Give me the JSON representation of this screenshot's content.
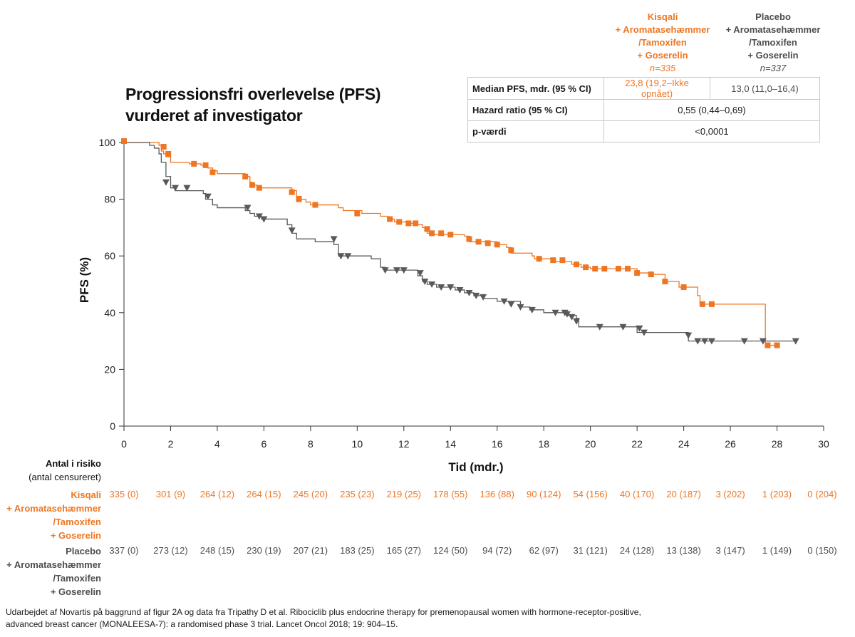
{
  "title_lines": [
    "Progressionsfri overlevelse (PFS)",
    "vurderet af investigator"
  ],
  "colors": {
    "kisqali": "#ee7623",
    "placebo": "#595959",
    "axis": "#333333"
  },
  "arms": {
    "kisqali": {
      "lines": [
        "Kisqali",
        "+ Aromatasehæmmer",
        "/Tamoxifen",
        "+ Goserelin"
      ],
      "n": "n=335"
    },
    "placebo": {
      "lines": [
        "Placebo",
        "+ Aromatasehæmmer",
        "/Tamoxifen",
        "+ Goserelin"
      ],
      "n": "n=337"
    }
  },
  "stats_table": [
    {
      "label": "Median PFS, mdr. (95 % CI)",
      "kisqali": "23,8 (19,2–Ikke opnået)",
      "placebo": "13,0 (11,0–16,4)"
    },
    {
      "label": "Hazard ratio (95 % CI)",
      "shared": "0,55 (0,44–0,69)"
    },
    {
      "label": "p-værdi",
      "shared": "<0,0001"
    }
  ],
  "risk": {
    "heading": "Antal i risiko",
    "subheading": "(antal censureret)",
    "kisqali_label_lines": [
      "Kisqali",
      "+ Aromatasehæmmer",
      "/Tamoxifen",
      "+ Goserelin"
    ],
    "placebo_label_lines": [
      "Placebo",
      "+ Aromatasehæmmer",
      "/Tamoxifen",
      "+ Goserelin"
    ],
    "times": [
      0,
      2,
      4,
      6,
      8,
      10,
      12,
      14,
      16,
      18,
      20,
      22,
      24,
      26,
      28,
      30
    ],
    "kisqali": [
      "335 (0)",
      "301 (9)",
      "264 (12)",
      "264 (15)",
      "245 (20)",
      "235 (23)",
      "219 (25)",
      "178 (55)",
      "136 (88)",
      "90 (124)",
      "54 (156)",
      "40 (170)",
      "20 (187)",
      "3 (202)",
      "1 (203)",
      "0 (204)"
    ],
    "placebo": [
      "337 (0)",
      "273 (12)",
      "248 (15)",
      "230 (19)",
      "207 (21)",
      "183 (25)",
      "165 (27)",
      "124 (50)",
      "94 (72)",
      "62 (97)",
      "31 (121)",
      "24 (128)",
      "13 (138)",
      "3 (147)",
      "1 (149)",
      "0 (150)"
    ]
  },
  "footnote_lines": [
    "Udarbejdet af Novartis på baggrund af figur 2A og data fra Tripathy D et al. Ribociclib plus endocrine therapy for premenopausal women with hormone-receptor-positive,",
    "advanced breast cancer (MONALEESA-7): a randomised phase 3 trial. Lancet Oncol 2018; 19: 904–15."
  ],
  "chart_data": {
    "type": "line",
    "subtype": "kaplan-meier",
    "xlabel": "Tid (mdr.)",
    "ylabel": "PFS (%)",
    "xlim": [
      0,
      30
    ],
    "ylim": [
      0,
      100
    ],
    "xticks": [
      0,
      2,
      4,
      6,
      8,
      10,
      12,
      14,
      16,
      18,
      20,
      22,
      24,
      26,
      28,
      30
    ],
    "yticks": [
      0,
      20,
      40,
      60,
      80,
      100
    ],
    "series": [
      {
        "name": "Kisqali + Aromatasehæmmer /Tamoxifen + Goserelin",
        "color": "#ee7623",
        "marker": "square",
        "steps": [
          [
            0,
            100
          ],
          [
            1.0,
            100
          ],
          [
            1.5,
            99
          ],
          [
            1.6,
            97
          ],
          [
            1.7,
            96
          ],
          [
            1.8,
            95
          ],
          [
            2.0,
            93
          ],
          [
            2.8,
            92.5
          ],
          [
            3.3,
            92
          ],
          [
            3.6,
            91
          ],
          [
            3.8,
            90
          ],
          [
            4.0,
            89
          ],
          [
            5.2,
            88
          ],
          [
            5.4,
            86
          ],
          [
            5.5,
            85
          ],
          [
            5.7,
            84
          ],
          [
            7.2,
            83
          ],
          [
            7.4,
            81
          ],
          [
            7.6,
            80
          ],
          [
            7.8,
            79
          ],
          [
            8.0,
            78
          ],
          [
            9.2,
            77
          ],
          [
            9.4,
            76
          ],
          [
            10.2,
            75
          ],
          [
            11.0,
            74
          ],
          [
            11.3,
            73
          ],
          [
            11.6,
            72
          ],
          [
            12.2,
            71.5
          ],
          [
            12.6,
            71
          ],
          [
            12.8,
            70
          ],
          [
            13.0,
            68
          ],
          [
            13.2,
            67.5
          ],
          [
            14.6,
            67
          ],
          [
            14.8,
            65
          ],
          [
            16.0,
            64
          ],
          [
            16.4,
            63
          ],
          [
            16.6,
            61
          ],
          [
            17.5,
            60
          ],
          [
            17.6,
            59
          ],
          [
            18.4,
            58
          ],
          [
            19.2,
            57
          ],
          [
            19.6,
            56
          ],
          [
            20.0,
            55.5
          ],
          [
            22.0,
            54
          ],
          [
            22.6,
            53.5
          ],
          [
            23.2,
            51
          ],
          [
            23.8,
            49
          ],
          [
            24.6,
            46
          ],
          [
            24.7,
            43
          ],
          [
            27.5,
            28.5
          ],
          [
            28.0,
            28.5
          ]
        ],
        "censored": [
          [
            0,
            100.5
          ],
          [
            1.7,
            98.5
          ],
          [
            1.9,
            96
          ],
          [
            3.0,
            92.5
          ],
          [
            3.5,
            92
          ],
          [
            3.8,
            89.5
          ],
          [
            5.2,
            88
          ],
          [
            5.5,
            85
          ],
          [
            5.8,
            84
          ],
          [
            7.2,
            82.5
          ],
          [
            7.5,
            80
          ],
          [
            8.2,
            78
          ],
          [
            10.0,
            75
          ],
          [
            11.4,
            73
          ],
          [
            11.8,
            72
          ],
          [
            12.2,
            71.5
          ],
          [
            12.5,
            71.5
          ],
          [
            13.0,
            69.5
          ],
          [
            13.2,
            68
          ],
          [
            13.6,
            68
          ],
          [
            14.0,
            67.5
          ],
          [
            14.8,
            66
          ],
          [
            15.2,
            65
          ],
          [
            15.6,
            64.5
          ],
          [
            16.0,
            64
          ],
          [
            16.6,
            62
          ],
          [
            17.8,
            59
          ],
          [
            18.4,
            58.5
          ],
          [
            18.8,
            58.5
          ],
          [
            19.4,
            57
          ],
          [
            19.8,
            56
          ],
          [
            20.2,
            55.5
          ],
          [
            20.6,
            55.5
          ],
          [
            21.2,
            55.5
          ],
          [
            21.6,
            55.5
          ],
          [
            22.0,
            54
          ],
          [
            22.6,
            53.5
          ],
          [
            23.2,
            51
          ],
          [
            24.0,
            49
          ],
          [
            24.8,
            43
          ],
          [
            25.2,
            43
          ],
          [
            27.6,
            28.5
          ],
          [
            28.0,
            28.5
          ]
        ]
      },
      {
        "name": "Placebo + Aromatasehæmmer /Tamoxifen + Goserelin",
        "color": "#595959",
        "marker": "triangle-down",
        "steps": [
          [
            0,
            100
          ],
          [
            0.8,
            100
          ],
          [
            1.1,
            99
          ],
          [
            1.3,
            98
          ],
          [
            1.5,
            96
          ],
          [
            1.6,
            93
          ],
          [
            1.8,
            88
          ],
          [
            2.0,
            84
          ],
          [
            2.2,
            83
          ],
          [
            3.4,
            82
          ],
          [
            3.5,
            80
          ],
          [
            3.8,
            78
          ],
          [
            4.0,
            77
          ],
          [
            5.2,
            76
          ],
          [
            5.4,
            75
          ],
          [
            5.6,
            74
          ],
          [
            5.9,
            73
          ],
          [
            7.0,
            71
          ],
          [
            7.2,
            68
          ],
          [
            7.4,
            66
          ],
          [
            8.2,
            65
          ],
          [
            9.0,
            64
          ],
          [
            9.2,
            60
          ],
          [
            10.6,
            59
          ],
          [
            11.0,
            56
          ],
          [
            11.2,
            55
          ],
          [
            12.6,
            53
          ],
          [
            12.8,
            51
          ],
          [
            13.0,
            50
          ],
          [
            13.4,
            49
          ],
          [
            14.2,
            48
          ],
          [
            14.6,
            47
          ],
          [
            15.0,
            46
          ],
          [
            15.4,
            45
          ],
          [
            16.0,
            44
          ],
          [
            17.0,
            42
          ],
          [
            17.4,
            41
          ],
          [
            18.0,
            40
          ],
          [
            19.0,
            39
          ],
          [
            19.4,
            38
          ],
          [
            19.5,
            35
          ],
          [
            22.0,
            33
          ],
          [
            24.2,
            30
          ],
          [
            25.0,
            30
          ],
          [
            28.8,
            29.5
          ]
        ],
        "censored": [
          [
            1.8,
            86
          ],
          [
            2.2,
            84
          ],
          [
            2.7,
            84
          ],
          [
            3.6,
            81
          ],
          [
            5.3,
            77
          ],
          [
            5.8,
            74
          ],
          [
            6.0,
            73
          ],
          [
            7.2,
            69
          ],
          [
            9.0,
            66
          ],
          [
            9.3,
            60
          ],
          [
            9.6,
            60
          ],
          [
            11.2,
            55
          ],
          [
            11.7,
            55
          ],
          [
            12.0,
            55
          ],
          [
            12.7,
            54
          ],
          [
            12.9,
            51
          ],
          [
            13.2,
            50
          ],
          [
            13.6,
            49
          ],
          [
            14.0,
            49
          ],
          [
            14.4,
            48
          ],
          [
            14.8,
            47
          ],
          [
            15.1,
            46
          ],
          [
            15.4,
            45.5
          ],
          [
            16.3,
            44
          ],
          [
            16.6,
            43
          ],
          [
            17.0,
            42
          ],
          [
            17.5,
            41
          ],
          [
            18.5,
            40
          ],
          [
            18.9,
            40
          ],
          [
            19.0,
            39.5
          ],
          [
            19.2,
            38.5
          ],
          [
            19.4,
            37
          ],
          [
            20.4,
            35
          ],
          [
            21.4,
            35
          ],
          [
            22.1,
            34.5
          ],
          [
            22.3,
            33
          ],
          [
            24.2,
            32
          ],
          [
            24.6,
            30
          ],
          [
            24.9,
            30
          ],
          [
            25.2,
            30
          ],
          [
            26.6,
            30
          ],
          [
            27.4,
            30
          ],
          [
            28.8,
            30
          ]
        ]
      }
    ]
  }
}
